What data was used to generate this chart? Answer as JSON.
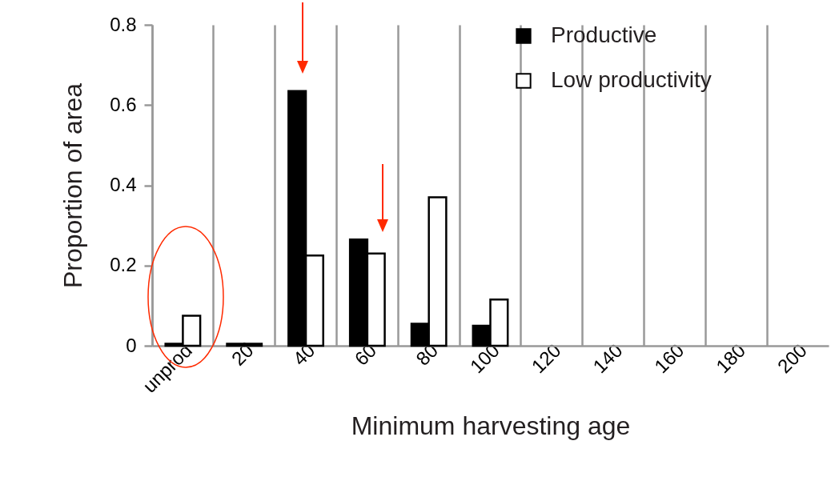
{
  "chart_data": {
    "type": "bar",
    "xlabel": "Minimum harvesting age",
    "ylabel": "Proportion of area",
    "categories": [
      "unprod",
      "20",
      "40",
      "60",
      "80",
      "100",
      "120",
      "140",
      "160",
      "180",
      "200"
    ],
    "series": [
      {
        "name": "Productive",
        "color": "#000000",
        "values": [
          0.005,
          0.005,
          0.635,
          0.265,
          0.055,
          0.05,
          0,
          0,
          0,
          0,
          0
        ]
      },
      {
        "name": "Low productivity",
        "color": "#ffffff",
        "values": [
          0.075,
          0.005,
          0.225,
          0.23,
          0.37,
          0.115,
          0,
          0,
          0,
          0,
          0
        ]
      }
    ],
    "ylim": [
      0,
      0.8
    ],
    "yticks": [
      0,
      0.2,
      0.4,
      0.6,
      0.8
    ],
    "grid": "x",
    "legend": "top right"
  }
}
